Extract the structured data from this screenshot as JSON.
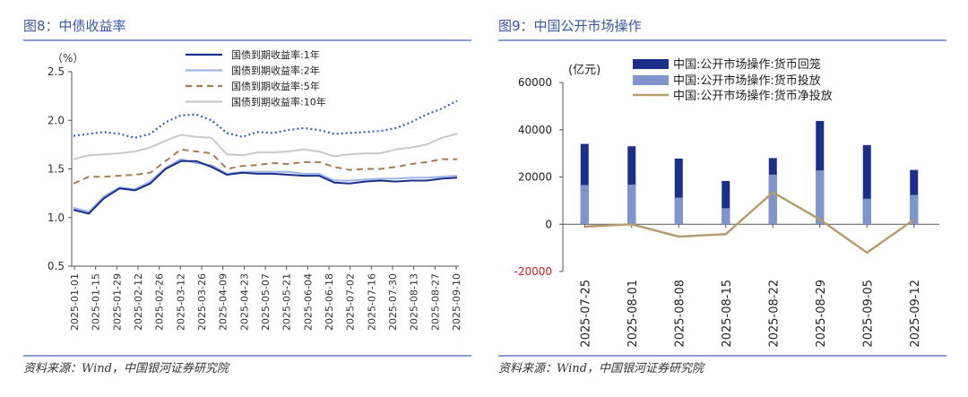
{
  "left": {
    "title": "图8：中债收益率",
    "source": "资料来源：Wind，中国银河证券研究院",
    "chart_data": {
      "type": "line",
      "unit_label": "（%）",
      "ylim": [
        0.5,
        2.5
      ],
      "yticks": [
        "0.5",
        "1.0",
        "1.5",
        "2.0",
        "2.5"
      ],
      "legend_position": "top",
      "x_tick_labels": [
        "2025-01-01",
        "2025-01-15",
        "2025-01-29",
        "2025-02-12",
        "2025-02-26",
        "2025-03-12",
        "2025-03-26",
        "2025-04-09",
        "2025-04-23",
        "2025-05-07",
        "2025-05-21",
        "2025-06-04",
        "2025-06-18",
        "2025-07-02",
        "2025-07-16",
        "2025-07-30",
        "2025-08-13",
        "2025-08-27",
        "2025-09-10"
      ],
      "series": [
        {
          "name": "国债到期收益率:1年",
          "color": "#1a2e8a",
          "style": "solid",
          "values": [
            1.08,
            1.04,
            1.2,
            1.3,
            1.28,
            1.35,
            1.5,
            1.58,
            1.58,
            1.52,
            1.44,
            1.46,
            1.45,
            1.45,
            1.44,
            1.43,
            1.43,
            1.36,
            1.35,
            1.37,
            1.38,
            1.37,
            1.38,
            1.38,
            1.4,
            1.41
          ]
        },
        {
          "name": "国债到期收益率:2年",
          "color": "#9db4e4",
          "style": "solid",
          "values": [
            1.1,
            1.06,
            1.22,
            1.31,
            1.29,
            1.37,
            1.51,
            1.6,
            1.56,
            1.54,
            1.45,
            1.47,
            1.47,
            1.47,
            1.47,
            1.45,
            1.45,
            1.38,
            1.38,
            1.39,
            1.4,
            1.4,
            1.41,
            1.41,
            1.42,
            1.43
          ]
        },
        {
          "name": "国债到期收益率:5年",
          "color": "#a57e52",
          "style": "dashed",
          "values": [
            1.35,
            1.42,
            1.42,
            1.43,
            1.44,
            1.46,
            1.58,
            1.7,
            1.68,
            1.66,
            1.5,
            1.53,
            1.54,
            1.56,
            1.55,
            1.57,
            1.57,
            1.52,
            1.49,
            1.5,
            1.5,
            1.52,
            1.55,
            1.57,
            1.6,
            1.6
          ]
        },
        {
          "name": "国债到期收益率:10年",
          "color": "#c9c9c9",
          "style": "solid",
          "values": [
            1.6,
            1.64,
            1.65,
            1.66,
            1.68,
            1.72,
            1.79,
            1.85,
            1.83,
            1.82,
            1.65,
            1.64,
            1.67,
            1.67,
            1.68,
            1.7,
            1.68,
            1.63,
            1.65,
            1.66,
            1.66,
            1.7,
            1.72,
            1.75,
            1.82,
            1.86
          ]
        },
        {
          "name": "",
          "color": "#3b5fc0",
          "style": "dotted",
          "values": [
            1.84,
            1.86,
            1.88,
            1.86,
            1.82,
            1.86,
            1.98,
            2.05,
            2.06,
            2.0,
            1.87,
            1.83,
            1.88,
            1.87,
            1.9,
            1.92,
            1.9,
            1.86,
            1.87,
            1.88,
            1.89,
            1.92,
            1.98,
            2.06,
            2.12,
            2.2
          ]
        }
      ]
    }
  },
  "right": {
    "title": "图9：中国公开市场操作",
    "source": "资料来源：Wind，中国银河证券研究院",
    "chart_data": {
      "type": "bar",
      "unit_label": "(亿元)",
      "ylim": [
        -20000,
        60000
      ],
      "yticks": [
        "-20000",
        "0",
        "20000",
        "40000",
        "60000"
      ],
      "legend_position": "top",
      "categories": [
        "2025-07-25",
        "2025-08-01",
        "2025-08-08",
        "2025-08-15",
        "2025-08-22",
        "2025-08-29",
        "2025-09-05",
        "2025-09-12"
      ],
      "series": [
        {
          "name": "中国:公开市场操作:货币回笼",
          "color": "#1a2e8a",
          "kind": "bar",
          "values": [
            34000,
            33000,
            27800,
            18300,
            28000,
            43700,
            33500,
            23000
          ]
        },
        {
          "name": "中国:公开市场操作:货币投放",
          "color": "#7f95cc",
          "kind": "bar",
          "values": [
            16600,
            16800,
            11300,
            6800,
            21000,
            22800,
            10800,
            12400
          ]
        },
        {
          "name": "中国:公开市场操作:货币净投放",
          "color": "#b69d6e",
          "kind": "line",
          "values": [
            -1000,
            0,
            -5200,
            -4200,
            13500,
            2000,
            -12000,
            2000
          ]
        }
      ]
    }
  }
}
